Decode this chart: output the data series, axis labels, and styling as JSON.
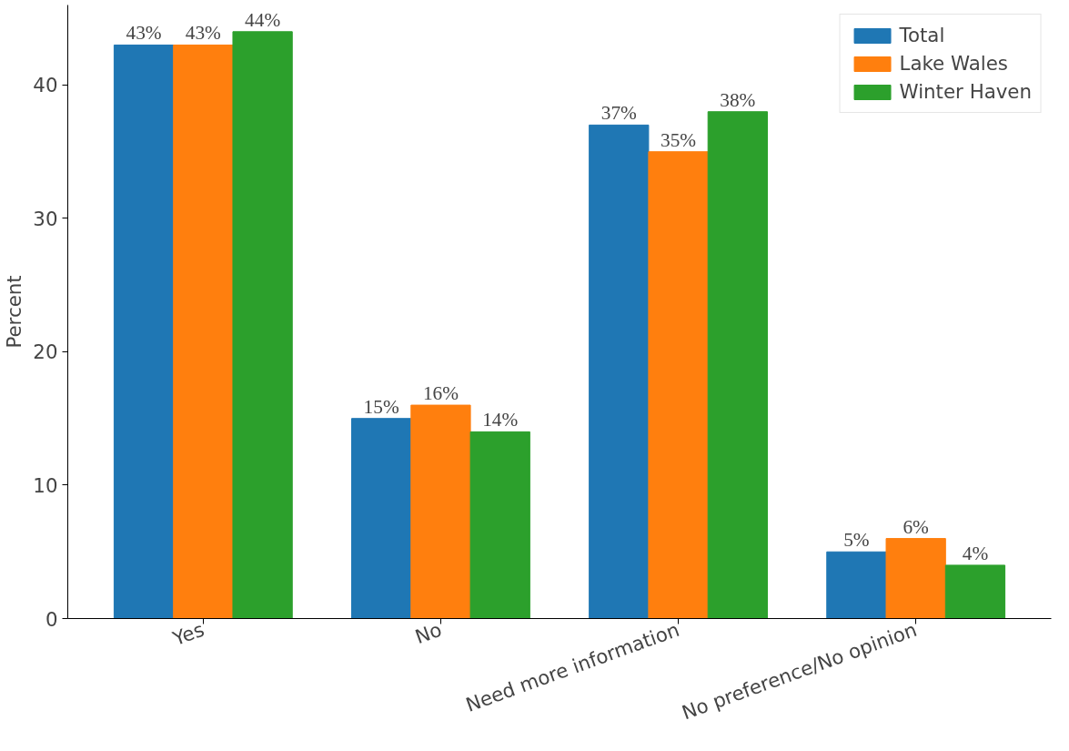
{
  "chart_data": {
    "type": "bar",
    "ylabel": "Percent",
    "categories": [
      "Yes",
      "No",
      "Need more information",
      "No preference/No opinion"
    ],
    "series": [
      {
        "name": "Total",
        "color": "#1f77b4",
        "values": [
          43,
          15,
          37,
          5
        ],
        "value_labels": [
          "43%",
          "15%",
          "37%",
          "5%"
        ]
      },
      {
        "name": "Lake Wales",
        "color": "#ff7f0e",
        "values": [
          43,
          16,
          35,
          6
        ],
        "value_labels": [
          "43%",
          "16%",
          "35%",
          "6%"
        ]
      },
      {
        "name": "Winter Haven",
        "color": "#2ca02c",
        "values": [
          44,
          14,
          38,
          4
        ],
        "value_labels": [
          "44%",
          "14%",
          "38%",
          "4%"
        ]
      }
    ],
    "ylim": [
      0,
      46
    ],
    "yticks": [
      0,
      10,
      20,
      30,
      40
    ],
    "grid": false,
    "legend": "top right"
  }
}
